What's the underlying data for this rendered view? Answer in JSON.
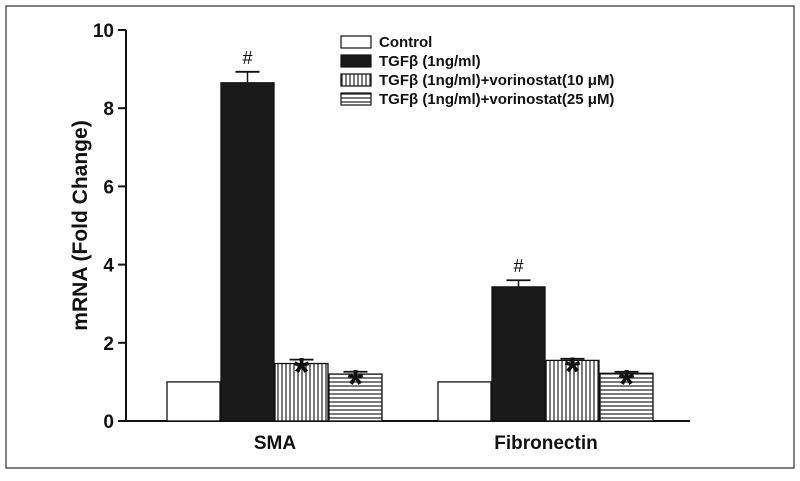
{
  "chart_data": {
    "type": "bar",
    "title": "",
    "xlabel": "",
    "ylabel": "mRNA (Fold Change)",
    "ylim": [
      0,
      10
    ],
    "yticks": [
      0,
      2,
      4,
      6,
      8,
      10
    ],
    "grid": false,
    "legend_position": "top-right",
    "categories": [
      "SMA",
      "Fibronectin"
    ],
    "series": [
      {
        "name": "Control",
        "values": [
          1.0,
          1.0
        ],
        "errors": [
          0,
          0
        ],
        "markers": [
          "",
          ""
        ],
        "fill": "white",
        "color": "#ffffff"
      },
      {
        "name": "TGFβ (1ng/ml)",
        "values": [
          8.65,
          3.43
        ],
        "errors": [
          0.28,
          0.17
        ],
        "markers": [
          "#",
          "#"
        ],
        "fill": "solid",
        "color": "#1a1a1a"
      },
      {
        "name": "TGFβ (1ng/ml)+vorinostat(10 μM)",
        "values": [
          1.47,
          1.55
        ],
        "errors": [
          0.1,
          0.04
        ],
        "markers": [
          "*",
          "*"
        ],
        "fill": "vertical-lines",
        "color": "#222222"
      },
      {
        "name": "TGFβ (1ng/ml)+vorinostat(25 μM)",
        "values": [
          1.2,
          1.22
        ],
        "errors": [
          0.06,
          0.04
        ],
        "markers": [
          "*",
          "*"
        ],
        "fill": "horizontal-lines",
        "color": "#222222"
      }
    ]
  }
}
